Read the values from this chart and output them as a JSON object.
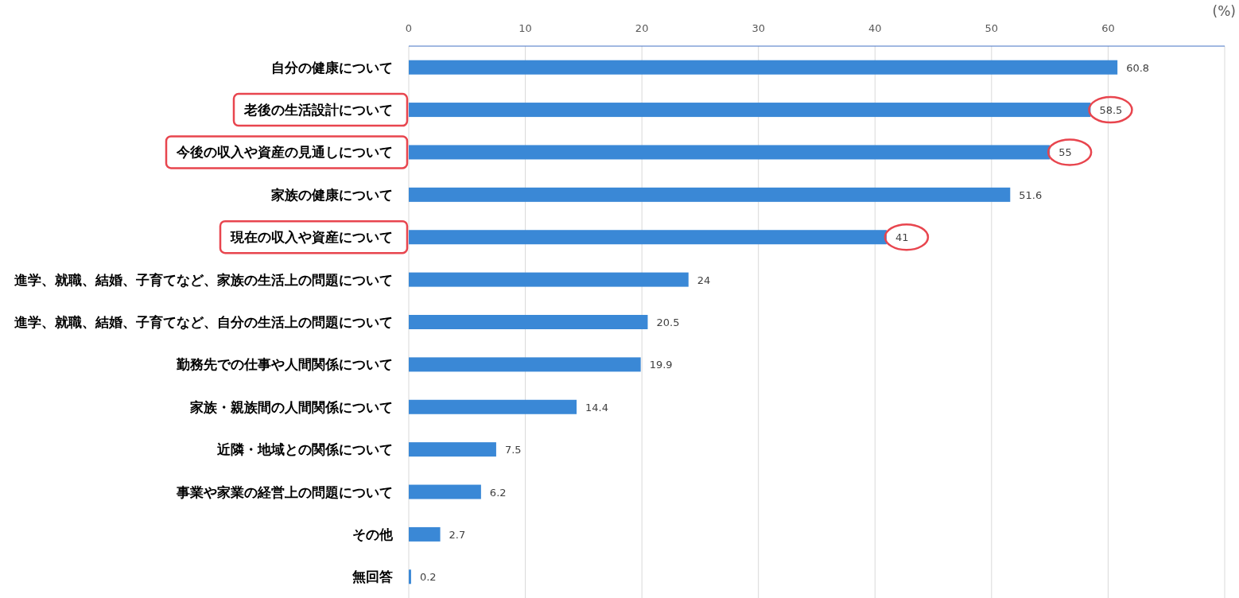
{
  "chart_data": {
    "type": "bar",
    "orientation": "horizontal",
    "xlabel": "(%)",
    "categories": [
      "自分の健康について",
      "老後の生活設計について",
      "今後の収入や資産の見通しについて",
      "家族の健康について",
      "現在の収入や資産について",
      "進学、就職、結婚、子育てなど、家族の生活上の問題について",
      "進学、就職、結婚、子育てなど、自分の生活上の問題について",
      "勤務先での仕事や人間関係について",
      "家族・親族間の人間関係について",
      "近隣・地域との関係について",
      "事業や家業の経営上の問題について",
      "その他",
      "無回答"
    ],
    "values": [
      60.8,
      58.5,
      55,
      51.6,
      41,
      24,
      20.5,
      19.9,
      14.4,
      7.5,
      6.2,
      2.7,
      0.2
    ],
    "color": "#3a88d6",
    "xlim": [
      0,
      70
    ],
    "xticks": [
      0,
      10,
      20,
      30,
      40,
      50,
      60,
      {
        "value": 70,
        "label": null
      }
    ],
    "grid": "x",
    "data_labels": true
  }
}
